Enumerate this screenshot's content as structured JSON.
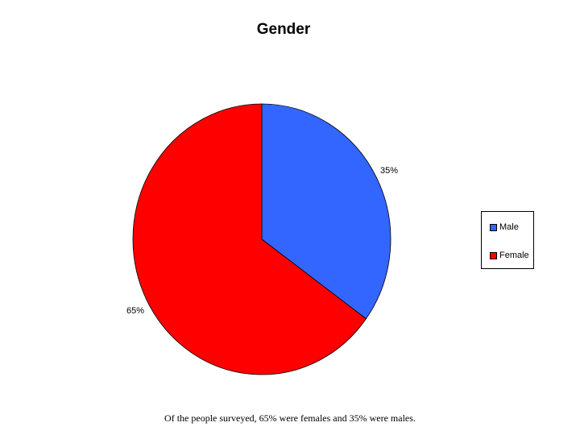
{
  "chart_data": {
    "type": "pie",
    "title": "Gender",
    "slices": [
      {
        "name": "Male",
        "value": 35,
        "label": "35%",
        "color": "#3366ff"
      },
      {
        "name": "Female",
        "value": 65,
        "label": "65%",
        "color": "#ff0000"
      }
    ],
    "legend_position": "right"
  },
  "caption": "Of the people surveyed, 65% were females and 35% were males."
}
